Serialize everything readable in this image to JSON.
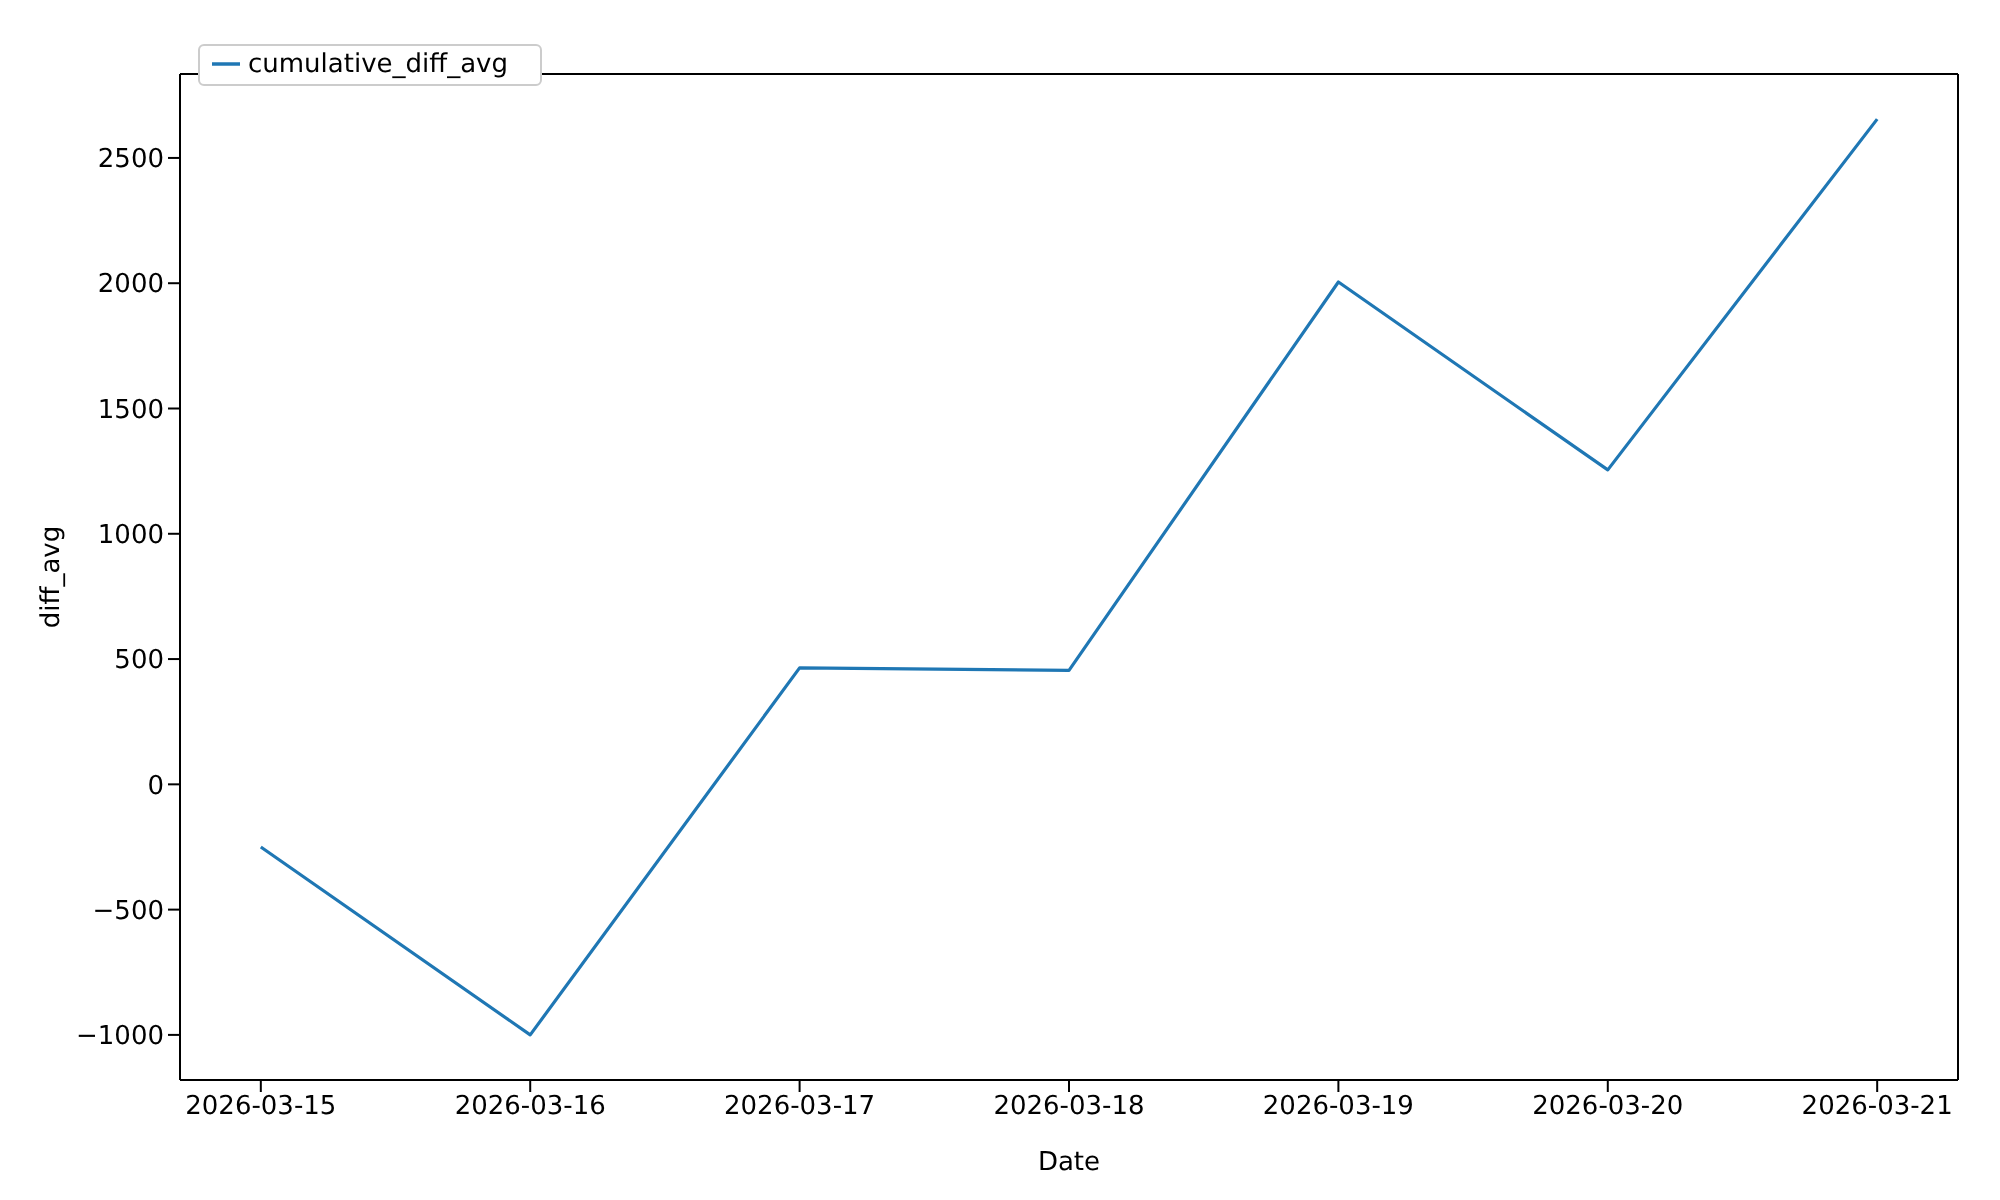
{
  "chart_data": {
    "type": "line",
    "xlabel": "Date",
    "ylabel": "diff_avg",
    "x": [
      "2026-03-15",
      "2026-03-16",
      "2026-03-17",
      "2026-03-18",
      "2026-03-19",
      "2026-03-20",
      "2026-03-21"
    ],
    "series": [
      {
        "name": "cumulative_diff_avg",
        "color": "#1f77b4",
        "values": [
          -250,
          -1000,
          465,
          455,
          2005,
          1255,
          2655
        ]
      }
    ],
    "xlim": [
      "2026-03-14T16:48",
      "2026-03-21T07:12"
    ],
    "xticks": [
      "2026-03-15",
      "2026-03-16",
      "2026-03-17",
      "2026-03-18",
      "2026-03-19",
      "2026-03-20",
      "2026-03-21"
    ],
    "ylim": [
      -1180,
      2835
    ],
    "yticks": [
      -1000,
      -500,
      0,
      500,
      1000,
      1500,
      2000,
      2500
    ],
    "grid": false,
    "legend": "top left",
    "marker": "none",
    "line_style": "solid"
  }
}
